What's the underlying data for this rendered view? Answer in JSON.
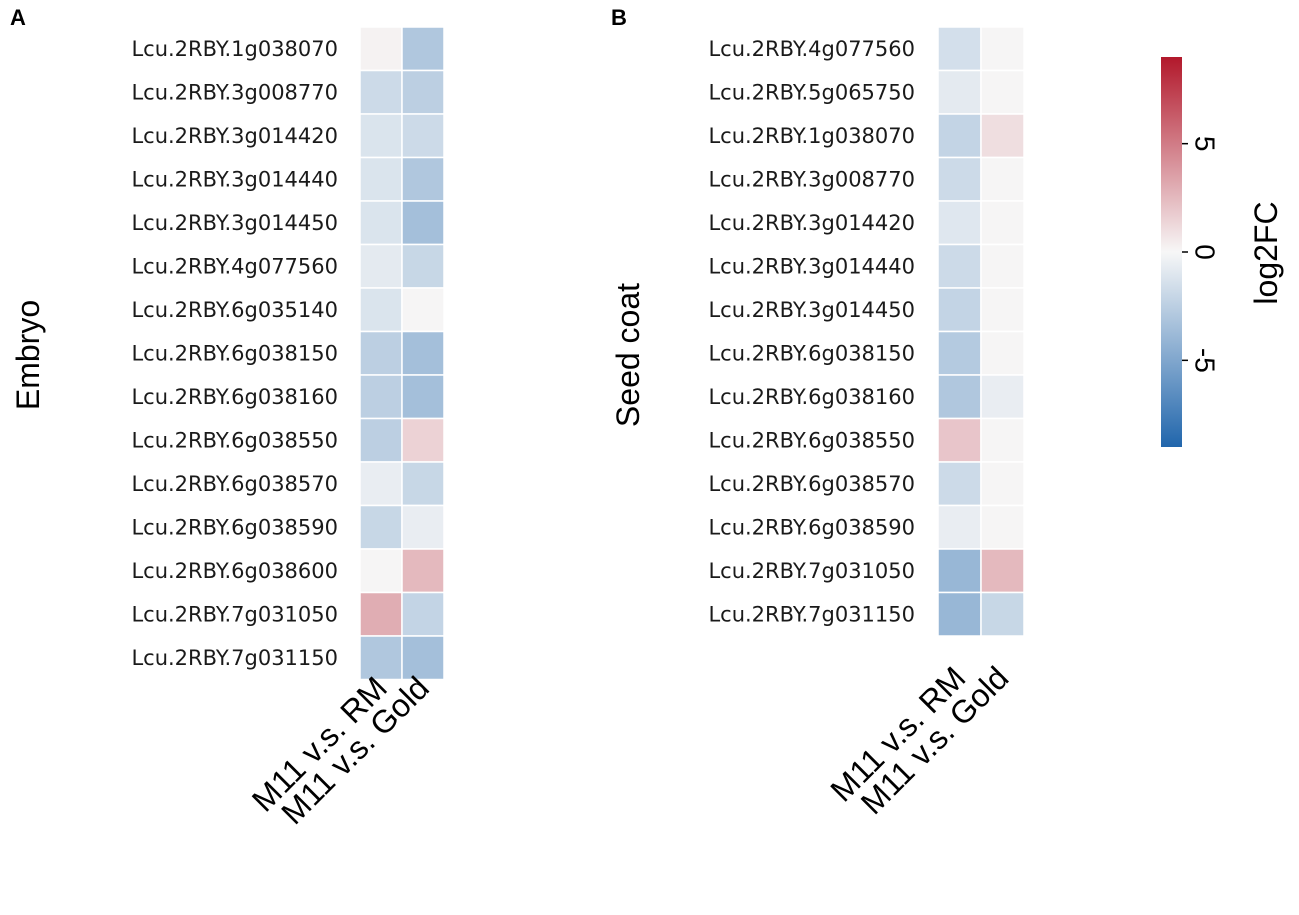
{
  "chart_data": [
    {
      "type": "heatmap",
      "panel_label": "A",
      "ylabel": "Embryo",
      "columns": [
        "M11 v.s. RM",
        "M11 v.s. Gold"
      ],
      "rows": [
        "Lcu.2RBY.1g038070",
        "Lcu.2RBY.3g008770",
        "Lcu.2RBY.3g014420",
        "Lcu.2RBY.3g014440",
        "Lcu.2RBY.3g014450",
        "Lcu.2RBY.4g077560",
        "Lcu.2RBY.6g035140",
        "Lcu.2RBY.6g038150",
        "Lcu.2RBY.6g038160",
        "Lcu.2RBY.6g038550",
        "Lcu.2RBY.6g038570",
        "Lcu.2RBY.6g038590",
        "Lcu.2RBY.6g038600",
        "Lcu.2RBY.7g031050",
        "Lcu.2RBY.7g031150"
      ],
      "values": [
        [
          0.2,
          -3.0
        ],
        [
          -1.8,
          -2.5
        ],
        [
          -1.2,
          -1.8
        ],
        [
          -1.2,
          -3.0
        ],
        [
          -1.2,
          -3.5
        ],
        [
          -0.8,
          -2.0
        ],
        [
          -1.2,
          0.1
        ],
        [
          -2.5,
          -3.5
        ],
        [
          -2.5,
          -3.5
        ],
        [
          -2.5,
          1.5
        ],
        [
          -0.6,
          -2.0
        ],
        [
          -2.0,
          -0.6
        ],
        [
          0.1,
          2.5
        ],
        [
          3.0,
          -2.2
        ],
        [
          -3.0,
          -3.5
        ]
      ]
    },
    {
      "type": "heatmap",
      "panel_label": "B",
      "ylabel": "Seed coat",
      "columns": [
        "M11 v.s. RM",
        "M11 v.s. Gold"
      ],
      "rows": [
        "Lcu.2RBY.4g077560",
        "Lcu.2RBY.5g065750",
        "Lcu.2RBY.1g038070",
        "Lcu.2RBY.3g008770",
        "Lcu.2RBY.3g014420",
        "Lcu.2RBY.3g014440",
        "Lcu.2RBY.3g014450",
        "Lcu.2RBY.6g038150",
        "Lcu.2RBY.6g038160",
        "Lcu.2RBY.6g038550",
        "Lcu.2RBY.6g038570",
        "Lcu.2RBY.6g038590",
        "Lcu.2RBY.7g031050",
        "Lcu.2RBY.7g031150"
      ],
      "values": [
        [
          -1.5,
          0.1
        ],
        [
          -0.8,
          0.1
        ],
        [
          -2.2,
          1.0
        ],
        [
          -1.8,
          0.1
        ],
        [
          -1.0,
          0.1
        ],
        [
          -1.8,
          0.1
        ],
        [
          -2.2,
          0.1
        ],
        [
          -2.8,
          0.1
        ],
        [
          -3.0,
          -0.6
        ],
        [
          2.0,
          0.1
        ],
        [
          -1.8,
          0.1
        ],
        [
          -0.6,
          0.1
        ],
        [
          -4.0,
          2.5
        ],
        [
          -4.0,
          -2.0
        ]
      ]
    }
  ],
  "colorbar": {
    "label": "log2FC",
    "min": -9,
    "max": 9,
    "ticks": [
      5,
      0,
      -5
    ],
    "tick_labels": [
      "5",
      "0",
      "-5"
    ],
    "colors": [
      "#2166ac",
      "#f7f7f7",
      "#b2182b"
    ]
  }
}
